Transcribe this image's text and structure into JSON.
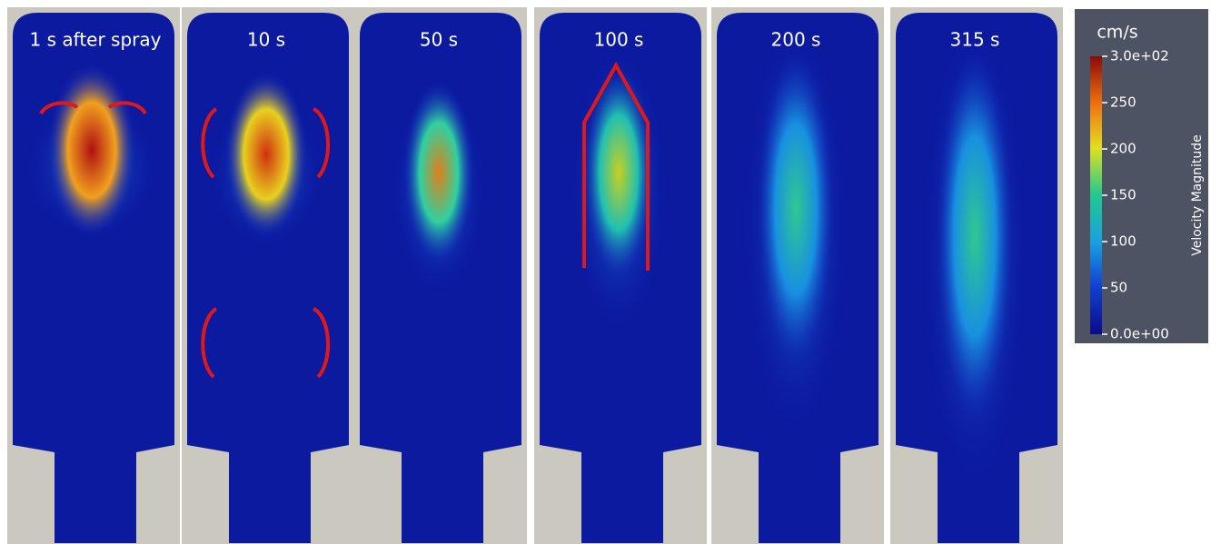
{
  "panels": [
    {
      "label": "1 s after spray"
    },
    {
      "label": "10 s"
    },
    {
      "label": "50 s"
    },
    {
      "label": "100 s"
    },
    {
      "label": "200 s"
    },
    {
      "label": "315 s"
    }
  ],
  "colorbar": {
    "unit": "cm/s",
    "title": "Velocity Magnitude",
    "range": [
      0,
      300
    ],
    "ticks": [
      {
        "value": 300,
        "label": "3.0e+02"
      },
      250,
      200,
      150,
      100,
      50,
      {
        "value": 0,
        "label": "0.0e+00"
      }
    ]
  }
}
